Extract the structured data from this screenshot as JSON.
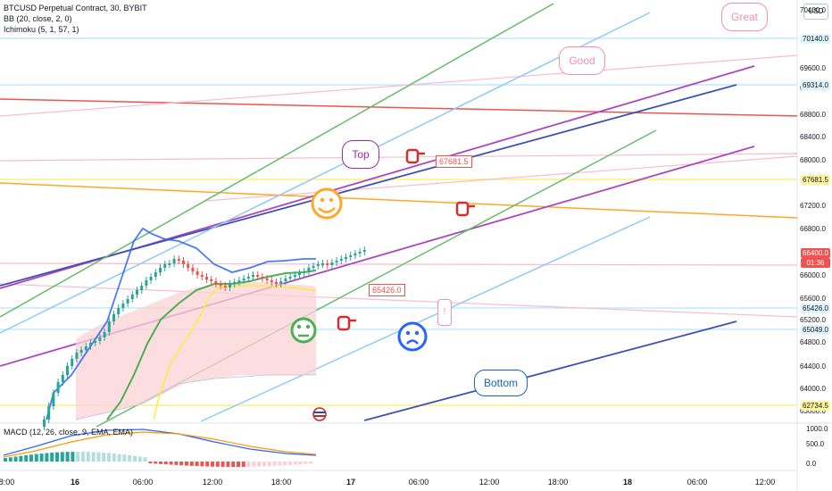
{
  "header": {
    "symbol_line": "BTCUSD Perpetual Contract, 30, BYBIT",
    "bb_line": "BB (20, close, 2, 0)",
    "ichimoku_line": "Ichimoku (5, 1, 57, 1)",
    "macd_line": "MACD (12, 26, close, 9, EMA, EMA)"
  },
  "currency_button": "USD",
  "price_axis": [
    "70400.0",
    "69600.0",
    "69200.0",
    "68800.0",
    "68400.0",
    "68000.0",
    "67200.0",
    "66800.0",
    "66000.0",
    "65600.0",
    "65200.0",
    "64800.0",
    "64400.0",
    "64000.0",
    "63600.0"
  ],
  "price_tags": {
    "t70140": "70140.0",
    "t69314": "69314.0",
    "t67681": "67681.5",
    "t66400": "66400.0",
    "t_countdown": "01:36",
    "t65426": "65426.0",
    "t65049": "65049.0",
    "t62734": "62734.5"
  },
  "macd_axis": [
    "1000.0",
    "500.0",
    "0.0"
  ],
  "time_axis": [
    "18:00",
    "16",
    "06:00",
    "12:00",
    "18:00",
    "17",
    "06:00",
    "12:00",
    "18:00",
    "18",
    "06:00",
    "12:00"
  ],
  "drawings": {
    "great": "Great",
    "good": "Good",
    "top": "Top",
    "bottom": "Bottom",
    "label_67681": "67681.5",
    "label_65426": "65426.0",
    "exclaim": "!"
  },
  "colors": {
    "up": "#26a69a",
    "down": "#ef5350",
    "bb_basis": "#2962ff",
    "green_line": "#4caf50",
    "ichimoku_yellow": "#ffeb3b",
    "cloud": "#f8c7c9",
    "callout_pink": "#f48fb1",
    "callout_purple": "#9c27b0",
    "bottom_blue": "#1565c0"
  }
}
